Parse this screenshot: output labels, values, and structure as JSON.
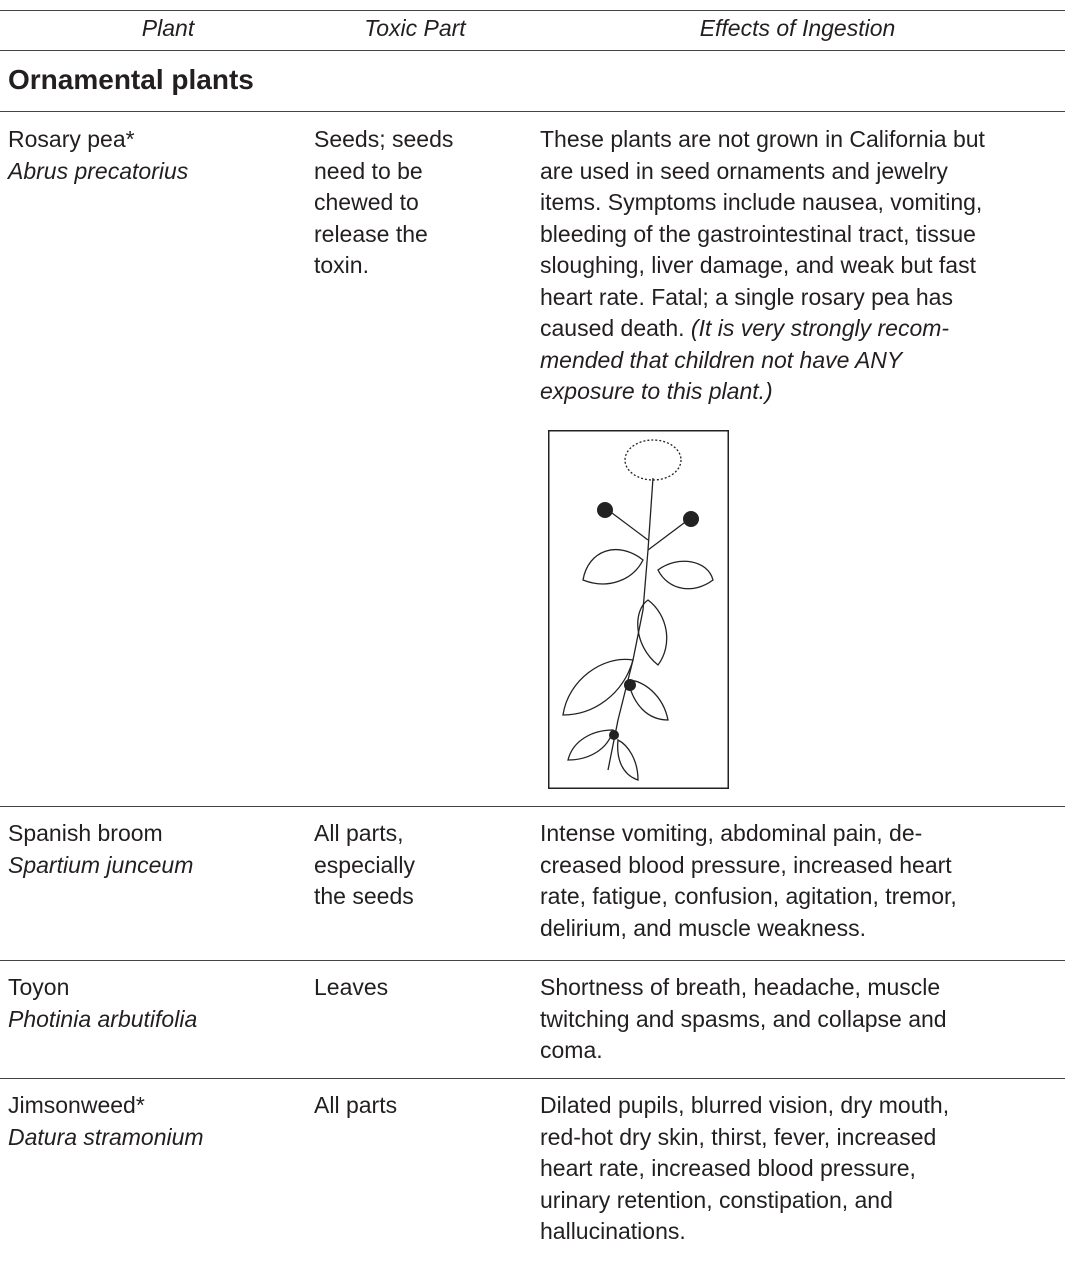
{
  "header": {
    "columns": [
      "Plant",
      "Toxic Part",
      "Effects of Ingestion"
    ]
  },
  "section": "Ornamental plants",
  "rows": [
    {
      "common": "Rosary pea*",
      "scientific": "Abrus precatorius",
      "toxic_part": [
        "Seeds; seeds",
        "need to be",
        "chewed to",
        "release the",
        "toxin."
      ],
      "effects": [
        "These plants are not grown in California but",
        "are used in seed ornaments and jewelry",
        "items. Symptoms include nausea, vomiting,",
        "bleeding of the gastrointestinal tract, tissue",
        "sloughing, liver damage, and weak but fast",
        "heart rate. Fatal; a single rosary pea has",
        "caused death."
      ],
      "note": [
        "(It is very strongly recom-",
        "mended that children not have ANY",
        "exposure to this plant.)"
      ]
    },
    {
      "common": "Spanish broom",
      "scientific": "Spartium junceum",
      "toxic_part": [
        "All parts,",
        "especially",
        "the seeds"
      ],
      "effects": [
        "Intense vomiting, abdominal pain, de-",
        "creased blood pressure, increased heart",
        "rate, fatigue, confusion, agitation, tremor,",
        "delirium, and muscle weakness."
      ]
    },
    {
      "common": "Toyon",
      "scientific": "Photinia arbutifolia",
      "toxic_part": [
        "Leaves"
      ],
      "effects": [
        "Shortness of breath, headache, muscle",
        "twitching and spasms, and collapse and",
        "coma."
      ]
    },
    {
      "common": "Jimsonweed*",
      "scientific": "Datura stramonium",
      "toxic_part": [
        "All parts"
      ],
      "effects": [
        "Dilated pupils, blurred vision, dry mouth,",
        "red-hot dry skin, thirst, fever, increased",
        "heart rate, increased blood pressure,",
        "urinary retention, constipation, and",
        "hallucinations."
      ]
    }
  ]
}
